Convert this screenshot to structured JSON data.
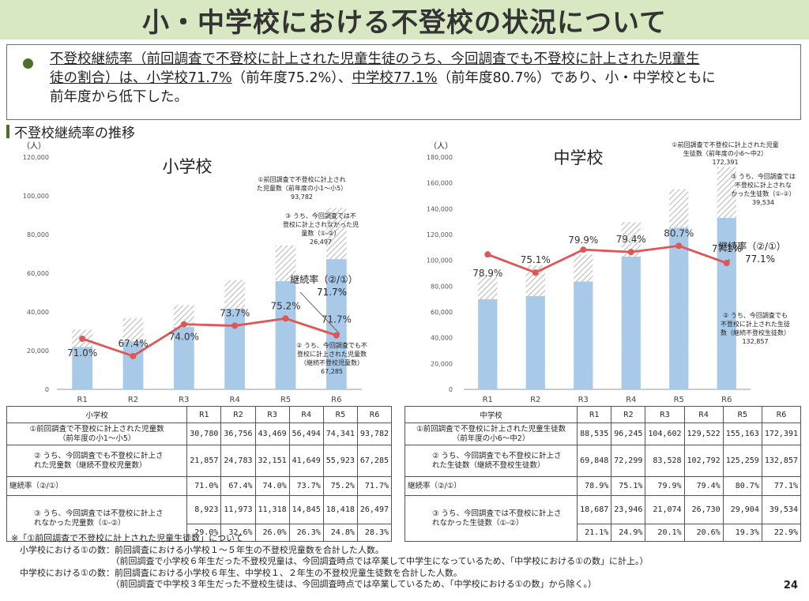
{
  "title": "小・中学校における不登校の状況について",
  "summary": {
    "p1": "不登校継続率（前回調査で不登校に計上された児童生徒のうち、今回調査でも不登校に計上された児童生",
    "p2": "徒の割合）は、",
    "p3": "小学校71.7%",
    "p4": "（前年度75.2%）、",
    "p5": "中学校77.1%",
    "p6": "（前年度80.7%）であり、小・中学校ともに",
    "p7": "前年度から低下した。"
  },
  "section_title": "不登校継続率の推移",
  "colors": {
    "bar_total": "#bbbbbb",
    "bar_cont": "#a9c9e8",
    "line": "#e05555",
    "title_bg": "#d7e8c3",
    "accent": "#4e6e2c"
  },
  "chart_data": [
    {
      "type": "bar",
      "title": "小学校",
      "ylabel": "（人）",
      "ylim": [
        0,
        120000
      ],
      "yticks": [
        "0",
        "20,000",
        "40,000",
        "60,000",
        "80,000",
        "100,000",
        "120,000"
      ],
      "categories": [
        "R1",
        "R2",
        "R3",
        "R4",
        "R5",
        "R6"
      ],
      "series": [
        {
          "name": "①前回調査で不登校に計上された児童数",
          "values": [
            30780,
            36756,
            43469,
            56494,
            74341,
            93782
          ]
        },
        {
          "name": "②うち、今回調査でも不登校に計上された児童数",
          "values": [
            21857,
            24783,
            32151,
            41649,
            55923,
            67285
          ]
        }
      ],
      "rate_labels": [
        "71.0%",
        "67.4%",
        "74.0%",
        "73.7%",
        "75.2%",
        "71.7%"
      ],
      "rate_values": [
        71.0,
        67.4,
        74.0,
        73.7,
        75.2,
        71.7
      ],
      "annotations": {
        "a1": [
          "①前回調査で不登校に計上され",
          "た児童数（前年度の小1〜小5）",
          "93,782"
        ],
        "a3": [
          "③ うち、今回調査では不",
          "登校に計上されなかった児",
          "童数（①-②）",
          "26,497"
        ],
        "rate": [
          "継続率（②/①）",
          "71.7%"
        ],
        "a2": [
          "② うち、今回調査でも不",
          "登校に計上された児童数",
          "（継続不登校児童数）",
          "67,285"
        ]
      }
    },
    {
      "type": "bar",
      "title": "中学校",
      "ylabel": "（人）",
      "ylim": [
        0,
        180000
      ],
      "yticks": [
        "0",
        "20,000",
        "40,000",
        "60,000",
        "80,000",
        "100,000",
        "120,000",
        "140,000",
        "160,000",
        "180,000"
      ],
      "categories": [
        "R1",
        "R2",
        "R3",
        "R4",
        "R5",
        "R6"
      ],
      "series": [
        {
          "name": "①前回調査で不登校に計上された児童生徒数",
          "values": [
            88535,
            96245,
            104602,
            129522,
            155163,
            172391
          ]
        },
        {
          "name": "②うち、今回調査でも不登校に計上された生徒数",
          "values": [
            69848,
            72299,
            83528,
            102792,
            125259,
            132857
          ]
        }
      ],
      "rate_labels": [
        "78.9%",
        "75.1%",
        "79.9%",
        "79.4%",
        "80.7%",
        "77.1%"
      ],
      "rate_values": [
        78.9,
        75.1,
        79.9,
        79.4,
        80.7,
        77.1
      ],
      "annotations": {
        "a1": [
          "①前回調査で不登校に計上された児童",
          "生徒数（前年度の小6〜中2）",
          "172,391"
        ],
        "a3": [
          "③ うち、今回調査では",
          "不登校に計上されな",
          "かった生徒数（①-②）",
          "39,534"
        ],
        "rate": [
          "継続率（②/①）",
          "77.1%"
        ],
        "a2": [
          "② うち、今回調査でも",
          "不登校に計上された生徒",
          "数（継続不登校生徒数）",
          "132,857"
        ]
      }
    }
  ],
  "tables": {
    "elem": {
      "header": [
        "小学校",
        "R1",
        "R2",
        "R3",
        "R4",
        "R5",
        "R6"
      ],
      "row1_label": [
        "①前回調査で不登校に計上された児童数",
        "（前年度の小1〜小5）"
      ],
      "row1": [
        "30,780",
        "36,756",
        "43,469",
        "56,494",
        "74,341",
        "93,782"
      ],
      "row2_label": [
        "② うち、今回調査でも不登校に計上さ",
        "れた児童数（継続不登校児童数）"
      ],
      "row2": [
        "21,857",
        "24,783",
        "32,151",
        "41,649",
        "55,923",
        "67,285"
      ],
      "rate_label": "継続率（②/①）",
      "rate": [
        "71.0%",
        "67.4%",
        "74.0%",
        "73.7%",
        "75.2%",
        "71.7%"
      ],
      "row3_label": [
        "③ うち、今回調査では不登校に計上さ",
        "れなかった児童数（①-②）"
      ],
      "row3": [
        "8,923",
        "11,973",
        "11,318",
        "14,845",
        "18,418",
        "26,497"
      ],
      "row3_pct": [
        "29.0%",
        "32.6%",
        "26.0%",
        "26.3%",
        "24.8%",
        "28.3%"
      ]
    },
    "junior": {
      "header": [
        "中学校",
        "R1",
        "R2",
        "R3",
        "R4",
        "R5",
        "R6"
      ],
      "row1_label": [
        "①前回調査で不登校に計上された児童生徒数",
        "（前年度の小6〜中2）"
      ],
      "row1": [
        "88,535",
        "96,245",
        "104,602",
        "129,522",
        "155,163",
        "172,391"
      ],
      "row2_label": [
        "② うち、今回調査でも不登校に計上さ",
        "れた生徒数（継続不登校生徒数）"
      ],
      "row2": [
        "69,848",
        "72,299",
        "83,528",
        "102,792",
        "125,259",
        "132,857"
      ],
      "rate_label": "継続率（②/①）",
      "rate": [
        "78.9%",
        "75.1%",
        "79.9%",
        "79.4%",
        "80.7%",
        "77.1%"
      ],
      "row3_label": [
        "③ うち、今回調査では不登校に計上さ",
        "れなかった生徒数（①-②）"
      ],
      "row3": [
        "18,687",
        "23,946",
        "21,074",
        "26,730",
        "29,904",
        "39,534"
      ],
      "row3_pct": [
        "21.1%",
        "24.9%",
        "20.1%",
        "20.6%",
        "19.3%",
        "22.9%"
      ]
    }
  },
  "notes": {
    "n1": "※「①前回調査で不登校に計上された児童生徒数」について",
    "n2": "　小学校における①の数：前回調査における小学校１〜５年生の不登校児童数を合計した人数。",
    "n3": "　　　　　　　　　　　　（前回調査で小学校６年生だった不登校児童は、今回調査時点では卒業して中学生になっているため、「中学校における①の数」に計上。）",
    "n4": "　中学校における①の数：前回調査における小学校６年生、中学校１、２年生の不登校児童生徒数を合計した人数。",
    "n5": "　　　　　　　　　　　　（前回調査で中学校３年生だった不登校生徒は、今回調査時点では卒業しているため、「中学校における①の数」から除く。）"
  },
  "page_number": "24"
}
